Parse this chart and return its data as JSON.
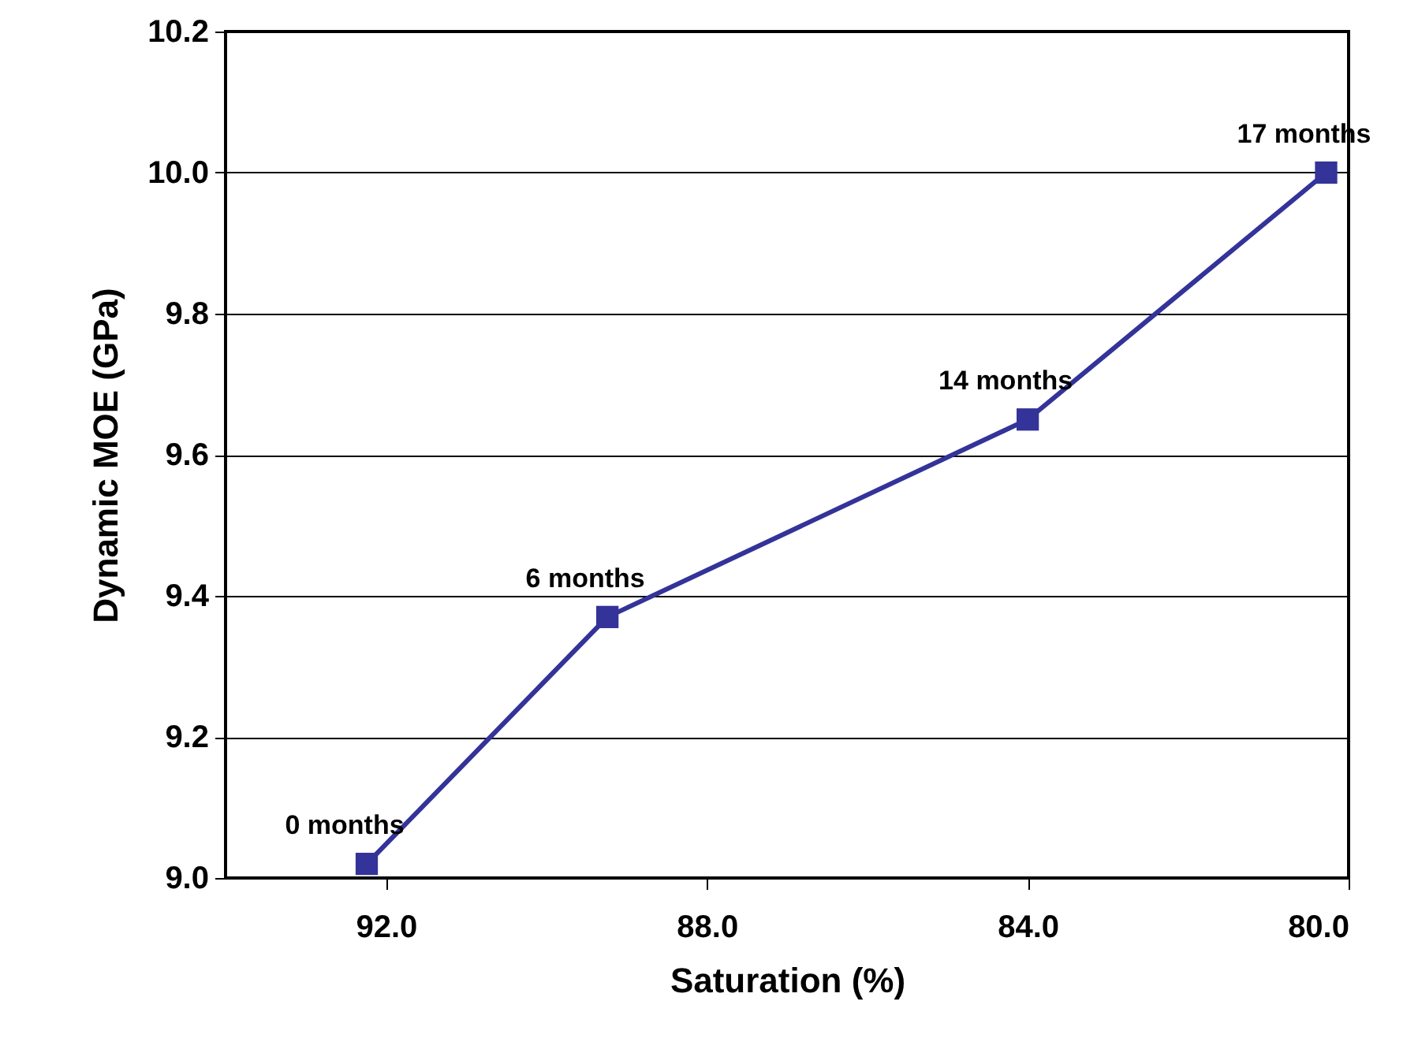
{
  "chart_data": {
    "type": "line",
    "xlabel": "Saturation (%)",
    "ylabel": "Dynamic MOE (GPa)",
    "x": [
      92.24,
      89.24,
      84.0,
      80.28
    ],
    "series": [
      {
        "color": "#333399",
        "values": [
          9.02,
          9.37,
          9.65,
          10.0
        ]
      }
    ],
    "marker": "square",
    "xlim": [
      94,
      80
    ],
    "xticks": [
      {
        "value": 92,
        "label": "92.0"
      },
      {
        "value": 88,
        "label": "88.0"
      },
      {
        "value": 84,
        "label": "84.0"
      },
      {
        "value": 80,
        "label": "80.0"
      }
    ],
    "ylim": [
      9.0,
      10.2
    ],
    "yticks": [
      {
        "value": 9.0,
        "label": "9.0"
      },
      {
        "value": 9.2,
        "label": "9.2"
      },
      {
        "value": 9.4,
        "label": "9.4"
      },
      {
        "value": 9.6,
        "label": "9.6"
      },
      {
        "value": 9.8,
        "label": "9.8"
      },
      {
        "value": 10.0,
        "label": "10.0"
      },
      {
        "value": 10.2,
        "label": "10.2"
      }
    ],
    "grid": "y",
    "annotations": [
      {
        "text": "0 months",
        "x": 92.24,
        "y": 9.02
      },
      {
        "text": "6 months",
        "x": 89.24,
        "y": 9.37
      },
      {
        "text": "14 months",
        "x": 84.0,
        "y": 9.65
      },
      {
        "text": "17 months",
        "x": 80.28,
        "y": 10.0
      }
    ]
  }
}
